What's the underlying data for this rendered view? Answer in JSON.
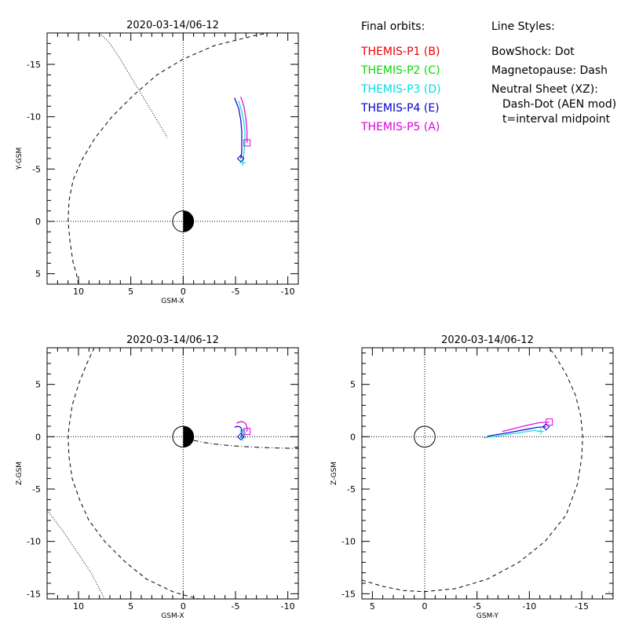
{
  "legend": {
    "orbits_title": "Final orbits:",
    "orbits": [
      {
        "label": "THEMIS-P1 (B)",
        "color": "#ee0000"
      },
      {
        "label": "THEMIS-P2 (C)",
        "color": "#00dd00"
      },
      {
        "label": "THEMIS-P3 (D)",
        "color": "#00dddd"
      },
      {
        "label": "THEMIS-P4 (E)",
        "color": "#0000cc"
      },
      {
        "label": "THEMIS-P5 (A)",
        "color": "#dd00dd"
      }
    ],
    "styles_title": "Line Styles:",
    "styles": [
      "BowShock: Dot",
      "Magnetopause: Dash",
      "Neutral Sheet (XZ):",
      "Dash-Dot (AEN mod)",
      "t=interval midpoint"
    ]
  },
  "chart_data": [
    {
      "type": "line",
      "title": "2020-03-14/06-12",
      "xlabel": "GSM-X",
      "ylabel": "Y-GSM",
      "xlim": [
        13,
        -11
      ],
      "ylim": [
        6,
        -18
      ],
      "xticks": [
        10,
        5,
        0,
        -5,
        -10
      ],
      "yticks": [
        5,
        0,
        -5,
        -10,
        -15
      ],
      "curves": {
        "bowshock": [
          [
            8,
            -18
          ],
          [
            7,
            -17
          ],
          [
            6,
            -15.5
          ],
          [
            4.5,
            -13
          ],
          [
            3,
            -10.5
          ],
          [
            1.5,
            -8
          ]
        ],
        "magnetopause": [
          [
            10,
            6
          ],
          [
            10.2,
            5
          ],
          [
            10.5,
            4
          ],
          [
            10.8,
            2
          ],
          [
            11,
            0
          ],
          [
            10.9,
            -2
          ],
          [
            10.5,
            -4
          ],
          [
            9.6,
            -6
          ],
          [
            8.4,
            -8
          ],
          [
            6.8,
            -10
          ],
          [
            4.8,
            -12
          ],
          [
            2.5,
            -14
          ],
          [
            0,
            -15.5
          ],
          [
            -3,
            -16.8
          ],
          [
            -7,
            -17.8
          ],
          [
            -10,
            -18.3
          ]
        ],
        "neutral_sheet": []
      },
      "series": [
        {
          "name": "THEMIS-P3 (D)",
          "color": "#00dddd",
          "x": [
            -5.3,
            -5.6,
            -5.8,
            -5.9,
            -5.9,
            -5.8,
            -5.7
          ],
          "y": [
            -11.5,
            -10.5,
            -9.5,
            -8.5,
            -7.5,
            -6.5,
            -5.6
          ],
          "marker": "+"
        },
        {
          "name": "THEMIS-P4 (E)",
          "color": "#0000cc",
          "x": [
            -4.9,
            -5.3,
            -5.5,
            -5.6,
            -5.6,
            -5.6,
            -5.5
          ],
          "y": [
            -11.8,
            -10.8,
            -9.7,
            -8.6,
            -7.5,
            -6.6,
            -6.0
          ],
          "marker": "diamond"
        },
        {
          "name": "THEMIS-P5 (A)",
          "color": "#dd00dd",
          "x": [
            -5.5,
            -5.8,
            -6.0,
            -6.1,
            -6.1
          ],
          "y": [
            -11.9,
            -11.0,
            -9.8,
            -8.6,
            -7.5
          ],
          "marker": "square"
        }
      ]
    },
    {
      "type": "line",
      "title": "2020-03-14/06-12",
      "xlabel": "GSM-X",
      "ylabel": "Z-GSM",
      "xlim": [
        13,
        -11
      ],
      "ylim": [
        -15.5,
        8.5
      ],
      "xticks": [
        10,
        5,
        0,
        -5,
        -10
      ],
      "yticks": [
        5,
        0,
        -5,
        -10,
        -15
      ],
      "curves": {
        "bowshock": [
          [
            13,
            -7
          ],
          [
            11.5,
            -9
          ],
          [
            10,
            -11.2
          ],
          [
            8.8,
            -13
          ],
          [
            7.5,
            -15.5
          ]
        ],
        "magnetopause": [
          [
            8.5,
            8.5
          ],
          [
            9.2,
            7
          ],
          [
            10,
            5
          ],
          [
            10.6,
            3
          ],
          [
            10.9,
            1
          ],
          [
            11,
            0
          ],
          [
            10.9,
            -2
          ],
          [
            10.6,
            -4
          ],
          [
            9.9,
            -6
          ],
          [
            9,
            -8
          ],
          [
            7.5,
            -10
          ],
          [
            5.5,
            -12
          ],
          [
            3.5,
            -13.6
          ],
          [
            1,
            -14.8
          ],
          [
            0,
            -15.1
          ],
          [
            -1.5,
            -15.5
          ]
        ],
        "neutral_sheet": [
          [
            -1,
            -0.35
          ],
          [
            -2,
            -0.55
          ],
          [
            -3,
            -0.7
          ],
          [
            -4,
            -0.8
          ],
          [
            -5,
            -0.88
          ],
          [
            -6,
            -0.95
          ],
          [
            -7,
            -1.0
          ],
          [
            -8,
            -1.05
          ],
          [
            -9,
            -1.08
          ],
          [
            -10,
            -1.1
          ],
          [
            -11,
            -1.12
          ]
        ]
      },
      "series": [
        {
          "name": "THEMIS-P3 (D)",
          "color": "#00dddd",
          "x": [
            -5.4,
            -5.6,
            -5.8,
            -5.9,
            -5.9,
            -5.8,
            -5.7
          ],
          "y": [
            0.4,
            0.6,
            0.7,
            0.6,
            0.3,
            0.0,
            -0.1
          ],
          "marker": "+"
        },
        {
          "name": "THEMIS-P4 (E)",
          "color": "#0000cc",
          "x": [
            -4.9,
            -5.2,
            -5.5,
            -5.6,
            -5.6,
            -5.6,
            -5.5
          ],
          "y": [
            0.9,
            1.0,
            0.9,
            0.6,
            0.3,
            0.1,
            0.0
          ],
          "marker": "diamond"
        },
        {
          "name": "THEMIS-P5 (A)",
          "color": "#dd00dd",
          "x": [
            -5.1,
            -5.5,
            -5.8,
            -6.0,
            -6.1,
            -6.1
          ],
          "y": [
            1.3,
            1.45,
            1.4,
            1.2,
            0.9,
            0.5
          ],
          "marker": "square"
        }
      ]
    },
    {
      "type": "line",
      "title": "2020-03-14/06-12",
      "xlabel": "GSM-Y",
      "ylabel": "Z-GSM",
      "xlim": [
        6,
        -18
      ],
      "ylim": [
        -15.5,
        8.5
      ],
      "xticks": [
        5,
        0,
        -5,
        -10,
        -15
      ],
      "yticks": [
        5,
        0,
        -5,
        -10,
        -15
      ],
      "curves": {
        "bowshock": [
          [
            -17.6,
            -14.8
          ],
          [
            -18,
            -15.3
          ]
        ],
        "magnetopause": [
          [
            6,
            -13.7
          ],
          [
            4,
            -14.3
          ],
          [
            2,
            -14.7
          ],
          [
            0,
            -14.8
          ],
          [
            -3,
            -14.5
          ],
          [
            -6,
            -13.6
          ],
          [
            -9,
            -12
          ],
          [
            -11.5,
            -10
          ],
          [
            -13.5,
            -7.5
          ],
          [
            -14.6,
            -4.5
          ],
          [
            -15,
            -2
          ],
          [
            -15.1,
            0
          ],
          [
            -14.9,
            2
          ],
          [
            -14.4,
            4
          ],
          [
            -13.5,
            6
          ],
          [
            -12.3,
            8
          ],
          [
            -11.8,
            8.5
          ]
        ],
        "neutral_sheet": []
      },
      "series": [
        {
          "name": "THEMIS-P3 (D)",
          "color": "#00dddd",
          "x": [
            -5.6,
            -6.5,
            -7.5,
            -8.5,
            -9.5,
            -10.5,
            -11.1
          ],
          "y": [
            -0.1,
            0.0,
            0.15,
            0.3,
            0.45,
            0.6,
            0.5
          ],
          "marker": "+"
        },
        {
          "name": "THEMIS-P4 (E)",
          "color": "#0000cc",
          "x": [
            -6.0,
            -6.6,
            -7.5,
            -8.6,
            -9.7,
            -10.8,
            -11.6
          ],
          "y": [
            0.05,
            0.15,
            0.3,
            0.5,
            0.7,
            0.9,
            0.95
          ],
          "marker": "diamond"
        },
        {
          "name": "THEMIS-P5 (A)",
          "color": "#dd00dd",
          "x": [
            -7.4,
            -8.6,
            -9.8,
            -11.0,
            -11.9
          ],
          "y": [
            0.5,
            0.8,
            1.1,
            1.35,
            1.4
          ],
          "marker": "square"
        }
      ]
    }
  ]
}
